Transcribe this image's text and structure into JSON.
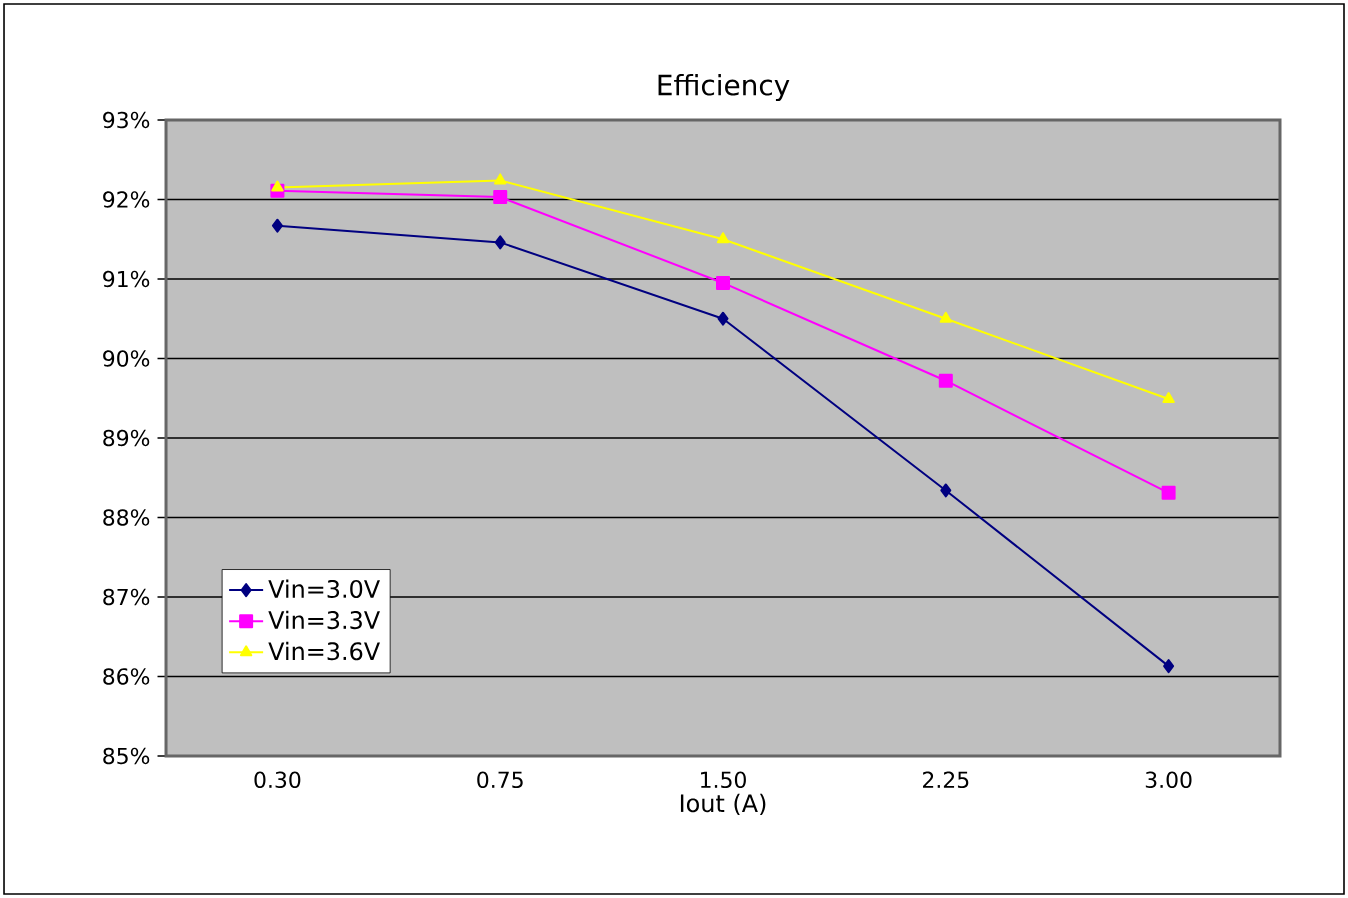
{
  "chart_data": {
    "type": "line",
    "title": "Efficiency",
    "xlabel": "Iout (A)",
    "categories": [
      "0.30",
      "0.75",
      "1.50",
      "2.25",
      "3.00"
    ],
    "series": [
      {
        "name": "Vin=3.0V",
        "color": "#000080",
        "marker": "diamond",
        "values": [
          91.67,
          91.46,
          90.5,
          88.34,
          86.13
        ]
      },
      {
        "name": "Vin=3.3V",
        "color": "#ff00ff",
        "marker": "square",
        "values": [
          92.11,
          92.03,
          90.95,
          89.72,
          88.31
        ]
      },
      {
        "name": "Vin=3.6V",
        "color": "#ffff00",
        "marker": "triangle",
        "values": [
          92.15,
          92.24,
          91.5,
          90.5,
          89.49
        ]
      }
    ],
    "ylim": [
      85,
      93
    ],
    "yticks": [
      {
        "value": 85,
        "label": "85%"
      },
      {
        "value": 86,
        "label": "86%"
      },
      {
        "value": 87,
        "label": "87%"
      },
      {
        "value": 88,
        "label": "88%"
      },
      {
        "value": 89,
        "label": "89%"
      },
      {
        "value": 90,
        "label": "90%"
      },
      {
        "value": 91,
        "label": "91%"
      },
      {
        "value": 92,
        "label": "92%"
      },
      {
        "value": 93,
        "label": "93%"
      }
    ],
    "grid": "y",
    "legend": "bottom left",
    "line_style": "solid"
  }
}
